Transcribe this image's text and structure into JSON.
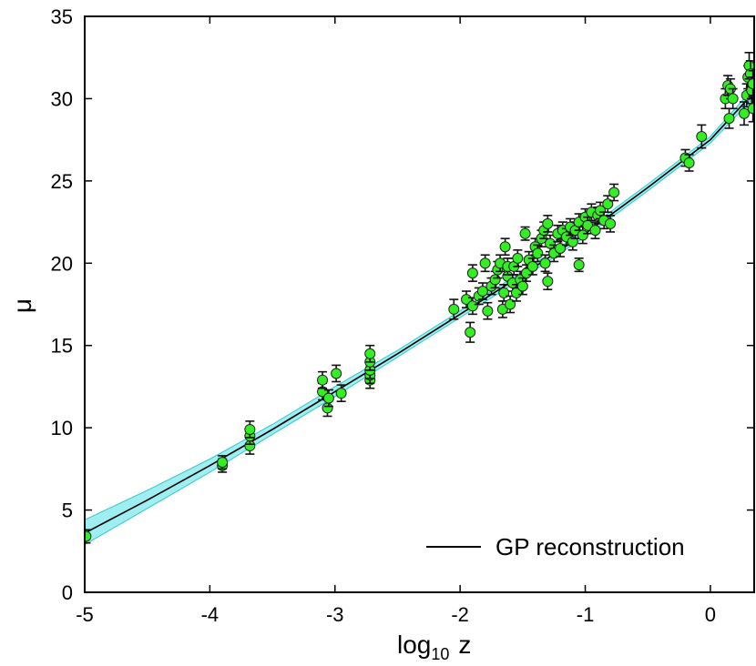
{
  "chart_data": {
    "type": "scatter",
    "title": "",
    "xlabel_main": "log",
    "xlabel_sub": "10",
    "xlabel_var": "z",
    "ylabel": "μ",
    "xlim": [
      -5,
      0.35
    ],
    "ylim": [
      0,
      35
    ],
    "xticks": [
      -5,
      -4,
      -3,
      -2,
      -1,
      0
    ],
    "xtick_labels": [
      "-5",
      "-4",
      "-3",
      "-2",
      "-1",
      "0"
    ],
    "yticks": [
      0,
      5,
      10,
      15,
      20,
      25,
      30,
      35
    ],
    "ytick_labels": [
      "0",
      "5",
      "10",
      "15",
      "20",
      "25",
      "30",
      "35"
    ],
    "legend": {
      "label": "GP reconstruction",
      "position": "bottom-right"
    },
    "colors": {
      "points": "#33ee22",
      "point_edge": "#222222",
      "errorbar": "#111111",
      "line": "#000000",
      "band": "#7fe8ec",
      "band_edge": "#2fc7cc"
    },
    "series": [
      {
        "name": "data",
        "kind": "scatter_errorbar",
        "points": [
          [
            -4.99,
            3.4,
            0.4
          ],
          [
            -3.9,
            7.7,
            0.4
          ],
          [
            -3.9,
            7.9,
            0.4
          ],
          [
            -3.68,
            8.9,
            0.5
          ],
          [
            -3.68,
            9.5,
            0.5
          ],
          [
            -3.68,
            9.9,
            0.5
          ],
          [
            -3.1,
            12.2,
            0.5
          ],
          [
            -3.1,
            12.9,
            0.5
          ],
          [
            -3.06,
            11.2,
            0.5
          ],
          [
            -3.05,
            11.8,
            0.5
          ],
          [
            -2.99,
            13.3,
            0.5
          ],
          [
            -2.95,
            12.1,
            0.5
          ],
          [
            -2.72,
            12.9,
            0.5
          ],
          [
            -2.72,
            13.2,
            0.5
          ],
          [
            -2.72,
            13.5,
            0.5
          ],
          [
            -2.72,
            14.0,
            0.5
          ],
          [
            -2.72,
            14.5,
            0.5
          ],
          [
            -2.05,
            17.2,
            0.6
          ],
          [
            -1.95,
            17.8,
            0.5
          ],
          [
            -1.92,
            15.8,
            0.6
          ],
          [
            -1.9,
            17.4,
            0.5
          ],
          [
            -1.9,
            19.4,
            0.5
          ],
          [
            -1.85,
            18.0,
            0.5
          ],
          [
            -1.82,
            18.3,
            0.5
          ],
          [
            -1.8,
            20.0,
            0.5
          ],
          [
            -1.78,
            17.1,
            0.5
          ],
          [
            -1.75,
            18.6,
            0.5
          ],
          [
            -1.72,
            19.0,
            0.5
          ],
          [
            -1.7,
            19.6,
            0.5
          ],
          [
            -1.68,
            20.0,
            0.5
          ],
          [
            -1.66,
            17.2,
            0.5
          ],
          [
            -1.65,
            18.2,
            0.5
          ],
          [
            -1.64,
            21.0,
            0.5
          ],
          [
            -1.62,
            19.2,
            0.5
          ],
          [
            -1.62,
            19.8,
            0.5
          ],
          [
            -1.6,
            17.5,
            0.5
          ],
          [
            -1.58,
            18.8,
            0.5
          ],
          [
            -1.57,
            19.8,
            0.5
          ],
          [
            -1.55,
            18.2,
            0.5
          ],
          [
            -1.54,
            20.3,
            0.5
          ],
          [
            -1.52,
            19.0,
            0.5
          ],
          [
            -1.5,
            18.6,
            0.5
          ],
          [
            -1.48,
            21.8,
            0.4
          ],
          [
            -1.47,
            19.4,
            0.5
          ],
          [
            -1.45,
            20.2,
            0.5
          ],
          [
            -1.42,
            19.8,
            0.5
          ],
          [
            -1.4,
            21.0,
            0.5
          ],
          [
            -1.38,
            20.6,
            0.5
          ],
          [
            -1.35,
            21.5,
            0.5
          ],
          [
            -1.33,
            22.0,
            0.5
          ],
          [
            -1.32,
            20.0,
            0.5
          ],
          [
            -1.3,
            18.9,
            0.5
          ],
          [
            -1.3,
            22.4,
            0.5
          ],
          [
            -1.28,
            21.2,
            0.5
          ],
          [
            -1.25,
            20.6,
            0.5
          ],
          [
            -1.22,
            21.8,
            0.5
          ],
          [
            -1.2,
            20.9,
            0.5
          ],
          [
            -1.18,
            22.0,
            0.5
          ],
          [
            -1.15,
            21.6,
            0.5
          ],
          [
            -1.12,
            22.2,
            0.5
          ],
          [
            -1.1,
            21.3,
            0.5
          ],
          [
            -1.08,
            22.0,
            0.5
          ],
          [
            -1.05,
            19.9,
            0.4
          ],
          [
            -1.05,
            22.5,
            0.5
          ],
          [
            -1.02,
            21.7,
            0.5
          ],
          [
            -1.0,
            22.8,
            0.5
          ],
          [
            -0.98,
            22.3,
            0.5
          ],
          [
            -0.95,
            23.1,
            0.5
          ],
          [
            -0.92,
            22.0,
            0.5
          ],
          [
            -0.9,
            22.9,
            0.5
          ],
          [
            -0.88,
            23.2,
            0.5
          ],
          [
            -0.85,
            22.6,
            0.5
          ],
          [
            -0.82,
            23.6,
            0.5
          ],
          [
            -0.8,
            22.4,
            0.5
          ],
          [
            -0.77,
            24.3,
            0.5
          ],
          [
            -0.2,
            26.4,
            0.5
          ],
          [
            -0.17,
            26.1,
            0.5
          ],
          [
            -0.07,
            27.7,
            0.7
          ],
          [
            0.12,
            30.0,
            0.6
          ],
          [
            0.14,
            30.8,
            0.6
          ],
          [
            0.15,
            28.8,
            0.6
          ],
          [
            0.16,
            30.6,
            0.6
          ],
          [
            0.18,
            30.0,
            0.6
          ],
          [
            0.27,
            29.1,
            0.7
          ],
          [
            0.29,
            30.2,
            0.7
          ],
          [
            0.3,
            31.3,
            0.7
          ],
          [
            0.31,
            32.0,
            0.8
          ],
          [
            0.32,
            31.5,
            0.8
          ],
          [
            0.33,
            30.5,
            0.8
          ],
          [
            0.34,
            29.4,
            0.8
          ],
          [
            0.34,
            30.9,
            0.8
          ]
        ]
      },
      {
        "name": "GP reconstruction",
        "kind": "line",
        "points": [
          [
            -5.0,
            3.6
          ],
          [
            -4.5,
            5.6
          ],
          [
            -4.0,
            7.7
          ],
          [
            -3.5,
            9.9
          ],
          [
            -3.0,
            12.2
          ],
          [
            -2.5,
            14.5
          ],
          [
            -2.0,
            16.9
          ],
          [
            -1.5,
            19.3
          ],
          [
            -1.0,
            21.8
          ],
          [
            -0.5,
            24.6
          ],
          [
            0.0,
            27.5
          ],
          [
            0.35,
            30.4
          ]
        ],
        "band": [
          [
            -5.0,
            2.9,
            4.4
          ],
          [
            -4.5,
            5.1,
            6.2
          ],
          [
            -4.0,
            7.3,
            8.1
          ],
          [
            -3.5,
            9.6,
            10.2
          ],
          [
            -3.0,
            11.9,
            12.5
          ],
          [
            -2.5,
            14.3,
            14.7
          ],
          [
            -2.0,
            16.7,
            17.1
          ],
          [
            -1.5,
            19.1,
            19.5
          ],
          [
            -1.0,
            21.6,
            22.0
          ],
          [
            -0.5,
            24.4,
            24.8
          ],
          [
            0.0,
            27.3,
            27.7
          ],
          [
            0.35,
            30.1,
            30.7
          ]
        ]
      }
    ]
  }
}
